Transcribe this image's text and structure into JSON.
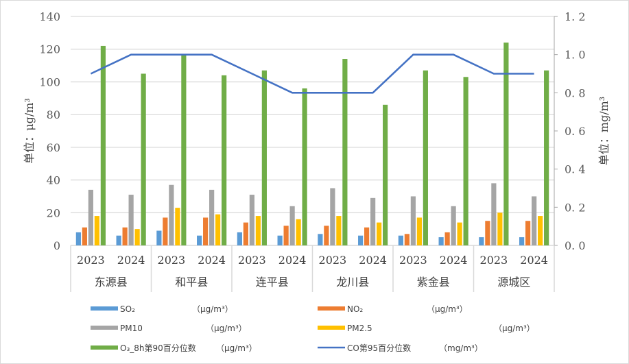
{
  "chart_data": {
    "type": "bar",
    "title": "",
    "categories": [
      {
        "region": "东源县",
        "years": [
          "2023",
          "2024"
        ]
      },
      {
        "region": "和平县",
        "years": [
          "2023",
          "2024"
        ]
      },
      {
        "region": "连平县",
        "years": [
          "2023",
          "2024"
        ]
      },
      {
        "region": "龙川县",
        "years": [
          "2023",
          "2024"
        ]
      },
      {
        "region": "紫金县",
        "years": [
          "2023",
          "2024"
        ]
      },
      {
        "region": "源城区",
        "years": [
          "2023",
          "2024"
        ]
      }
    ],
    "x": [
      "东源县 2023",
      "东源县 2024",
      "和平县 2023",
      "和平县 2024",
      "连平县 2023",
      "连平县 2024",
      "龙川县 2023",
      "龙川县 2024",
      "紫金县 2023",
      "紫金县 2024",
      "源城区 2023",
      "源城区 2024"
    ],
    "series": [
      {
        "name": "SO₂",
        "unit": "（μg/m³）",
        "type": "bar",
        "axis": "left",
        "color": "#5B9BD5",
        "values": [
          8,
          6,
          9,
          6,
          8,
          6,
          7,
          6,
          6,
          5,
          5,
          5
        ]
      },
      {
        "name": "NO₂",
        "unit": "（μg/m³）",
        "type": "bar",
        "axis": "left",
        "color": "#ED7D31",
        "values": [
          11,
          11,
          17,
          17,
          14,
          12,
          12,
          11,
          7,
          8,
          15,
          15
        ]
      },
      {
        "name": "PM10",
        "unit": "（μg/m³）",
        "type": "bar",
        "axis": "left",
        "color": "#A5A5A5",
        "values": [
          34,
          31,
          37,
          34,
          31,
          24,
          35,
          29,
          30,
          24,
          38,
          30
        ]
      },
      {
        "name": "PM2.5",
        "unit": "（μg/m³）",
        "type": "bar",
        "axis": "left",
        "color": "#FFC000",
        "values": [
          18,
          10,
          23,
          19,
          18,
          16,
          18,
          14,
          17,
          14,
          20,
          18
        ]
      },
      {
        "name": "O₃_8h第90百分位数",
        "unit": "（μg/m³）",
        "type": "bar",
        "axis": "left",
        "color": "#70AD47",
        "values": [
          122,
          105,
          117,
          104,
          107,
          96,
          114,
          86,
          107,
          103,
          124,
          107
        ]
      },
      {
        "name": "CO第95百分位数",
        "unit": "（mg/m³）",
        "type": "line",
        "axis": "right",
        "color": "#4472C4",
        "values": [
          0.9,
          1.0,
          1.0,
          1.0,
          0.9,
          0.8,
          0.8,
          0.8,
          1.0,
          1.0,
          0.9,
          0.9
        ]
      }
    ],
    "ylabel": "单位：μg/m³",
    "y2label": "单位：mg/m³",
    "ylim": [
      0,
      140
    ],
    "y2lim": [
      0,
      1.2
    ],
    "yticks": [
      "0",
      "20",
      "40",
      "60",
      "80",
      "100",
      "120",
      "140"
    ],
    "y2ticks": [
      "0.0",
      "0.2",
      "0.4",
      "0.6",
      "0.8",
      "1.0",
      "1.2"
    ],
    "grid": true,
    "legend_position": "bottom"
  },
  "axes": {
    "left_title": "单位：μg/m³",
    "right_title": "单位：mg/m³"
  }
}
